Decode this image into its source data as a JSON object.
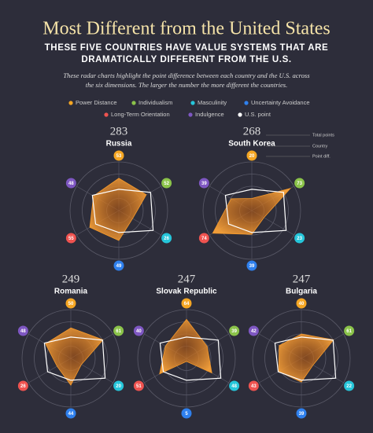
{
  "header": {
    "title": "Most Different from the United States",
    "subtitle": [
      "THESE FIVE COUNTRIES HAVE VALUE SYSTEMS THAT ARE",
      "DRAMATICALLY DIFFERENT FROM THE U.S."
    ],
    "description": [
      "These radar charts highlight the point difference between each country and the U.S. across",
      "the six dimensions. The larger the number the more different the countries."
    ]
  },
  "legend": {
    "items": [
      {
        "name": "Power Distance",
        "color": "#f5a623"
      },
      {
        "name": "Individualism",
        "color": "#8bc34a"
      },
      {
        "name": "Masculinity",
        "color": "#26c6da"
      },
      {
        "name": "Uncertainty Avoidance",
        "color": "#2f80ed"
      },
      {
        "name": "Long-Term Orientation",
        "color": "#ef5350"
      },
      {
        "name": "Indulgence",
        "color": "#7e57c2"
      },
      {
        "name": "U.S. point",
        "color": "#ffffff"
      }
    ]
  },
  "annotations": [
    "Total points",
    "Country",
    "Point diff."
  ],
  "chart_data": [
    {
      "type": "radar",
      "total": 283,
      "title": "Russia",
      "values": [
        53,
        52,
        26,
        49,
        55,
        48
      ],
      "us_values": [
        35,
        60,
        65,
        36,
        44,
        50
      ],
      "color": "#f59a2c",
      "rlim": [
        0,
        80
      ],
      "rticks": [
        20,
        40,
        60,
        80
      ]
    },
    {
      "type": "radar",
      "total": 268,
      "title": "South Korea",
      "values": [
        20,
        73,
        23,
        39,
        74,
        39
      ],
      "us_values": [
        35,
        60,
        65,
        36,
        44,
        50
      ],
      "color": "#f59a2c",
      "rlim": [
        0,
        80
      ],
      "rticks": [
        20,
        40,
        60,
        80
      ]
    },
    {
      "type": "radar",
      "total": 249,
      "title": "Romania",
      "values": [
        50,
        61,
        20,
        44,
        26,
        48
      ],
      "us_values": [
        35,
        60,
        65,
        36,
        44,
        50
      ],
      "color": "#f59a2c",
      "rlim": [
        0,
        80
      ],
      "rticks": [
        20,
        40,
        60,
        80
      ]
    },
    {
      "type": "radar",
      "total": 247,
      "title": "Slovak Republic",
      "values": [
        64,
        39,
        48,
        5,
        51,
        40
      ],
      "us_values": [
        35,
        60,
        65,
        36,
        44,
        50
      ],
      "color": "#f59a2c",
      "rlim": [
        0,
        80
      ],
      "rticks": [
        20,
        40,
        60,
        80
      ]
    },
    {
      "type": "radar",
      "total": 247,
      "title": "Bulgaria",
      "values": [
        40,
        61,
        22,
        39,
        43,
        42
      ],
      "us_values": [
        35,
        60,
        65,
        36,
        44,
        50
      ],
      "color": "#f59a2c",
      "rlim": [
        0,
        80
      ],
      "rticks": [
        20,
        40,
        60,
        80
      ]
    }
  ]
}
